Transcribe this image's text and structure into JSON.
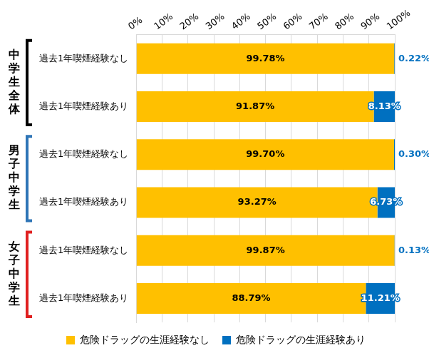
{
  "chart_data": {
    "type": "bar",
    "orientation": "horizontal",
    "stacked": true,
    "data_labels": true,
    "grid": true,
    "legend": "bottom",
    "groups": [
      {
        "name": "中学生全体",
        "color": "#000000",
        "categories": [
          "過去1年喫煙経験なし",
          "過去1年喫煙経験あり"
        ]
      },
      {
        "name": "男子中学生",
        "color": "#2e75b6",
        "categories": [
          "過去1年喫煙経験なし",
          "過去1年喫煙経験あり"
        ]
      },
      {
        "name": "女子中学生",
        "color": "#e02020",
        "categories": [
          "過去1年喫煙経験なし",
          "過去1年喫煙経験あり"
        ]
      }
    ],
    "series": [
      {
        "name": "危険ドラッグの生涯経験なし",
        "color": "#ffc000",
        "values": [
          99.78,
          91.87,
          99.7,
          93.27,
          99.87,
          88.79
        ],
        "value_labels": [
          "99.78%",
          "91.87%",
          "99.70%",
          "93.27%",
          "99.87%",
          "88.79%"
        ]
      },
      {
        "name": "危険ドラッグの生涯経験あり",
        "color": "#0070c0",
        "values": [
          0.22,
          8.13,
          0.3,
          6.73,
          0.13,
          11.21
        ],
        "value_labels": [
          "0.22%",
          "8.13%",
          "0.30%",
          "6.73%",
          "0.13%",
          "11.21%"
        ]
      }
    ],
    "xlim": [
      0,
      100
    ],
    "xticks": [
      {
        "value": 0,
        "label": "0%"
      },
      {
        "value": 10,
        "label": "10%"
      },
      {
        "value": 20,
        "label": "20%"
      },
      {
        "value": 30,
        "label": "30%"
      },
      {
        "value": 40,
        "label": "40%"
      },
      {
        "value": 50,
        "label": "50%"
      },
      {
        "value": 60,
        "label": "60%"
      },
      {
        "value": 70,
        "label": "70%"
      },
      {
        "value": 80,
        "label": "80%"
      },
      {
        "value": 90,
        "label": "90%"
      },
      {
        "value": 100,
        "label": "100%"
      }
    ]
  }
}
